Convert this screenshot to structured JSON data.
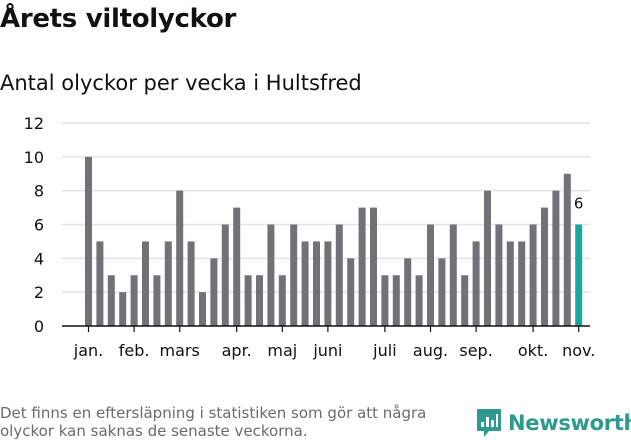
{
  "page": {
    "title": "Årets viltolyckor",
    "footnote": "Det finns en eftersläpning i statistiken som gör att några olyckor kan saknas de senaste veckorna.",
    "brand": "Newsworthy"
  },
  "colors": {
    "bar": "#727276",
    "highlight": "#1aa89a",
    "grid": "#e3e3e3",
    "axis": "#111111",
    "brand": "#2e9a8d"
  },
  "chart_data": {
    "type": "bar",
    "title": "Antal olyckor per vecka i Hultsfred",
    "ylim": [
      0,
      12
    ],
    "yticks": [
      0,
      2,
      4,
      6,
      8,
      10,
      12
    ],
    "values": [
      10,
      5,
      3,
      2,
      3,
      5,
      3,
      5,
      8,
      5,
      2,
      4,
      6,
      7,
      3,
      3,
      6,
      3,
      6,
      5,
      5,
      5,
      6,
      4,
      7,
      7,
      3,
      3,
      4,
      3,
      6,
      4,
      6,
      3,
      5,
      8,
      6,
      5,
      5,
      6,
      7,
      8,
      9,
      6
    ],
    "highlight_index": 43,
    "highlight_label": "6",
    "month_labels": [
      {
        "label": "jan.",
        "bar": 0
      },
      {
        "label": "feb.",
        "bar": 4
      },
      {
        "label": "mars",
        "bar": 8
      },
      {
        "label": "apr.",
        "bar": 13
      },
      {
        "label": "maj",
        "bar": 17
      },
      {
        "label": "juni",
        "bar": 21
      },
      {
        "label": "juli",
        "bar": 26
      },
      {
        "label": "aug.",
        "bar": 30
      },
      {
        "label": "sep.",
        "bar": 34
      },
      {
        "label": "okt.",
        "bar": 39
      },
      {
        "label": "nov.",
        "bar": 43
      }
    ]
  }
}
